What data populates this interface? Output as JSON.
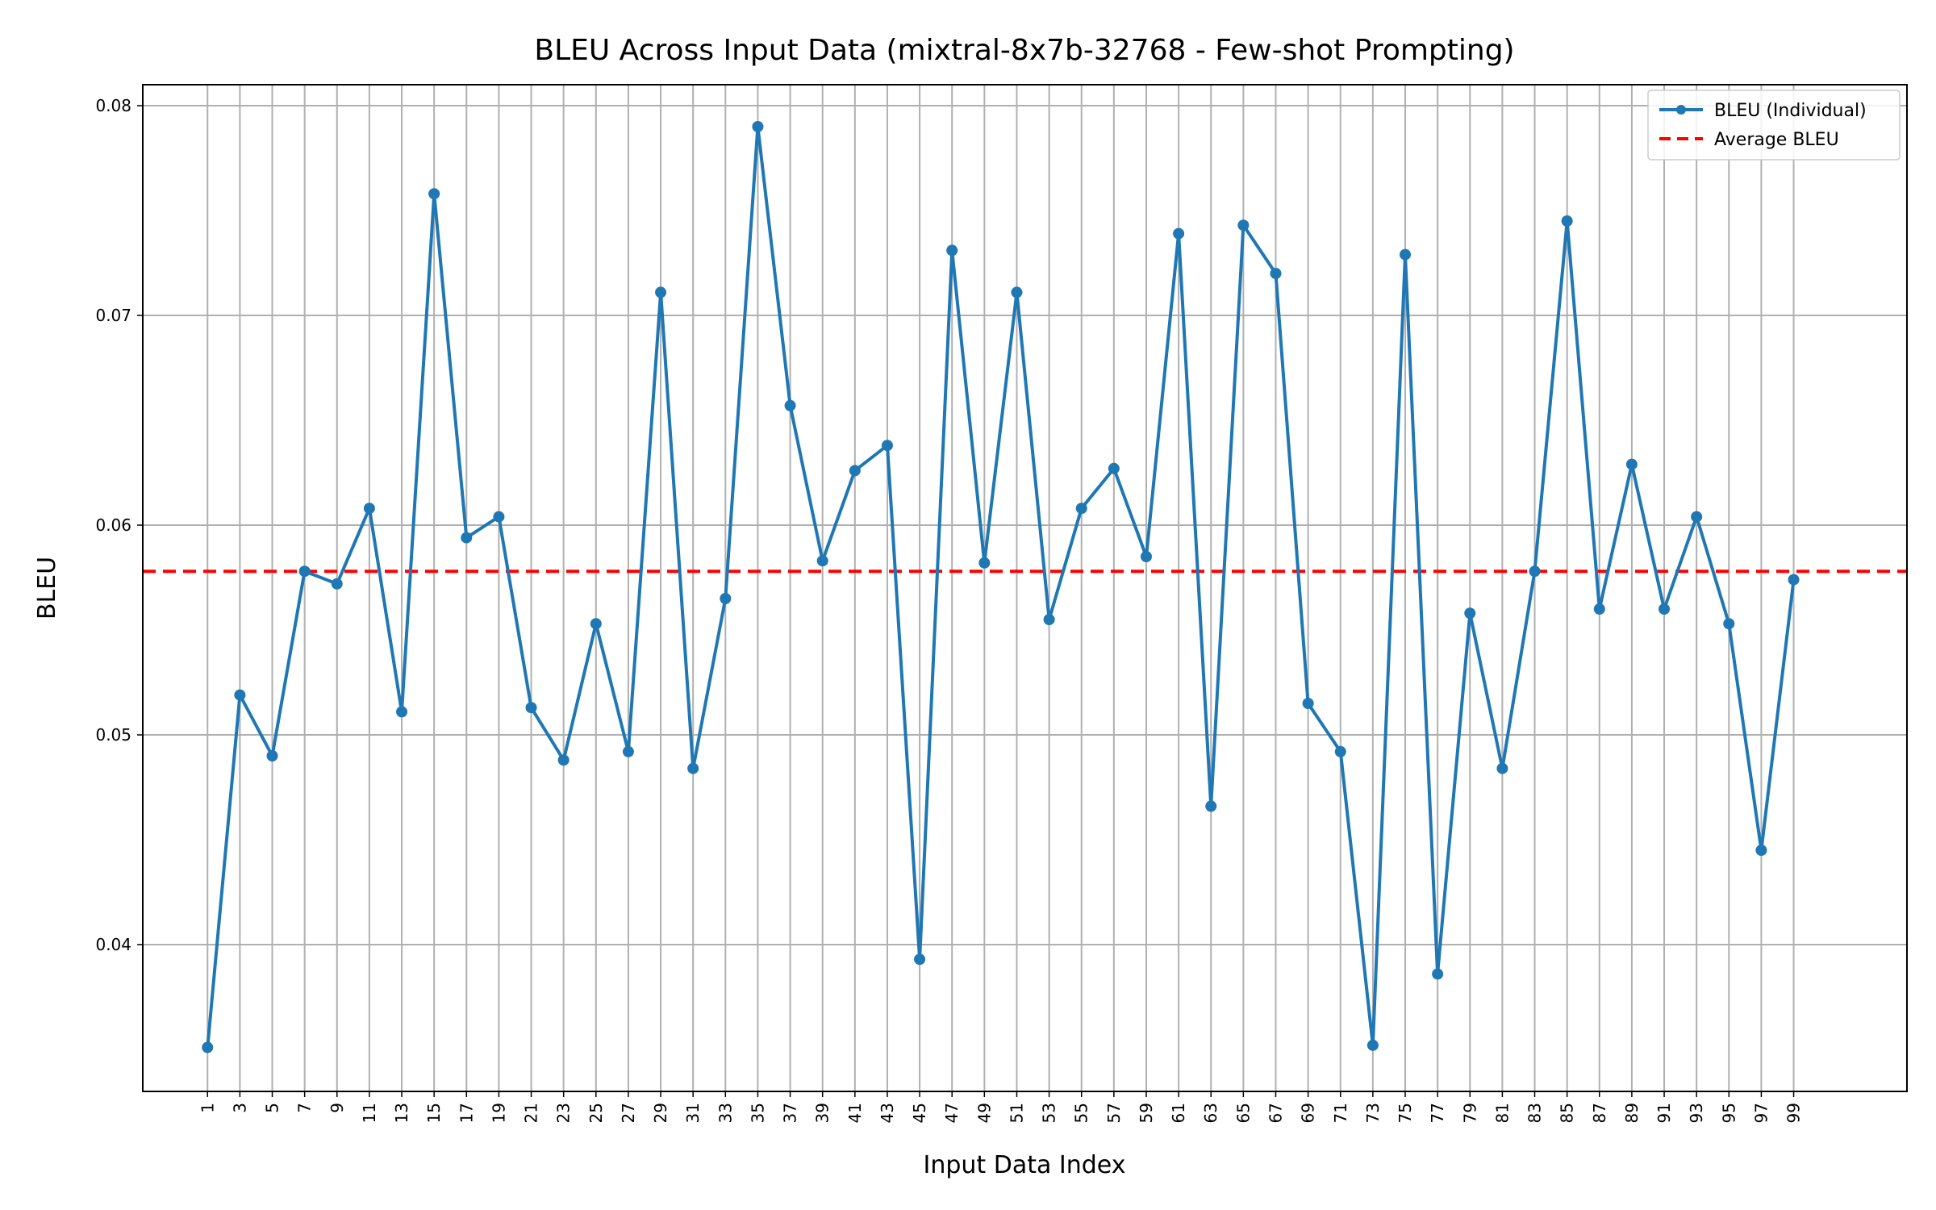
{
  "chart_data": {
    "type": "line",
    "title": "BLEU Across Input Data (mixtral-8x7b-32768 - Few-shot Prompting)",
    "xlabel": "Input Data Index",
    "ylabel": "BLEU",
    "xlim": [
      -3,
      106
    ],
    "ylim": [
      0.033,
      0.081
    ],
    "yticks": [
      0.04,
      0.05,
      0.06,
      0.07,
      0.08
    ],
    "ytick_labels": [
      "0.04",
      "0.05",
      "0.06",
      "0.07",
      "0.08"
    ],
    "xticks": [
      1,
      3,
      5,
      7,
      9,
      11,
      13,
      15,
      17,
      19,
      21,
      23,
      25,
      27,
      29,
      31,
      33,
      35,
      37,
      39,
      41,
      43,
      45,
      47,
      49,
      51,
      53,
      55,
      57,
      59,
      61,
      63,
      65,
      67,
      69,
      71,
      73,
      75,
      77,
      79,
      81,
      83,
      85,
      87,
      89,
      91,
      93,
      95,
      97,
      99
    ],
    "xtick_labels": [
      "1",
      "3",
      "5",
      "7",
      "9",
      "11",
      "13",
      "15",
      "17",
      "19",
      "21",
      "23",
      "25",
      "27",
      "29",
      "31",
      "33",
      "35",
      "37",
      "39",
      "41",
      "43",
      "45",
      "47",
      "49",
      "51",
      "53",
      "55",
      "57",
      "59",
      "61",
      "63",
      "65",
      "67",
      "69",
      "71",
      "73",
      "75",
      "77",
      "79",
      "81",
      "83",
      "85",
      "87",
      "89",
      "91",
      "93",
      "95",
      "97",
      "99"
    ],
    "grid": true,
    "legend_position": "top-right",
    "series": [
      {
        "name": "BLEU (Individual)",
        "color": "#1f77b4",
        "style": "solid-with-markers",
        "x": [
          1,
          3,
          5,
          7,
          9,
          11,
          13,
          15,
          17,
          19,
          21,
          23,
          25,
          27,
          29,
          31,
          33,
          35,
          37,
          39,
          41,
          43,
          45,
          47,
          49,
          51,
          53,
          55,
          57,
          59,
          61,
          63,
          65,
          67,
          69,
          71,
          73,
          75,
          77,
          79,
          81,
          83,
          85,
          87,
          89,
          91,
          93,
          95,
          97,
          99
        ],
        "values": [
          0.0351,
          0.0519,
          0.049,
          0.0578,
          0.0572,
          0.0608,
          0.0511,
          0.0758,
          0.0594,
          0.0604,
          0.0513,
          0.0488,
          0.0553,
          0.0492,
          0.0711,
          0.0484,
          0.0565,
          0.079,
          0.0657,
          0.0583,
          0.0626,
          0.0638,
          0.0393,
          0.0731,
          0.0582,
          0.0711,
          0.0555,
          0.0608,
          0.0627,
          0.0585,
          0.0739,
          0.0466,
          0.0743,
          0.072,
          0.0515,
          0.0492,
          0.0352,
          0.0729,
          0.0386,
          0.0558,
          0.0484,
          0.0578,
          0.0745,
          0.056,
          0.0629,
          0.056,
          0.0604,
          0.0553,
          0.0445,
          0.0574
        ]
      },
      {
        "name": "Average BLEU",
        "color": "#ff0000",
        "style": "dashed",
        "y": 0.0578
      }
    ]
  }
}
